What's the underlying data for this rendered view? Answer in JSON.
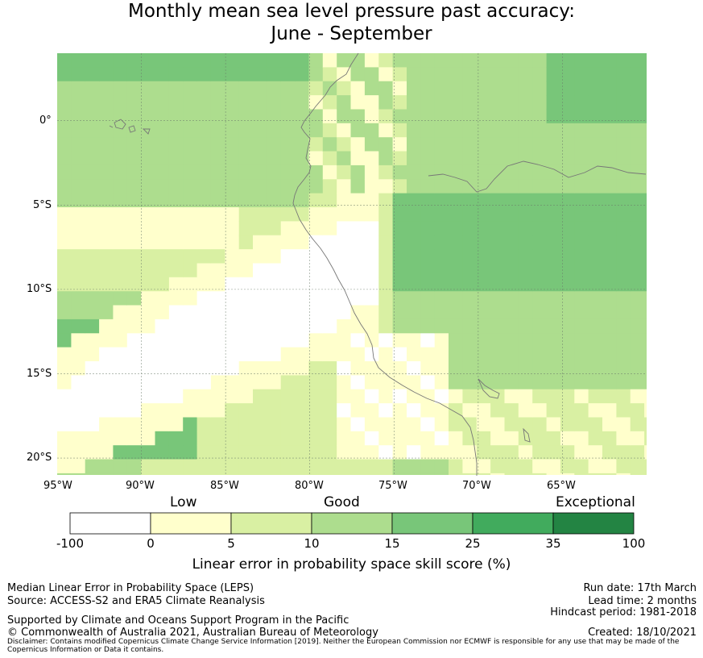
{
  "title": {
    "line1": "Monthly mean sea level pressure past accuracy:",
    "line2": "June - September"
  },
  "map": {
    "lat_labels": [
      "0°",
      "5°S",
      "10°S",
      "15°S",
      "20°S"
    ],
    "lon_labels": [
      "95°W",
      "90°W",
      "85°W",
      "80°W",
      "75°W",
      "70°W",
      "65°W"
    ],
    "lon_range": [
      -95,
      -60
    ],
    "lat_range": [
      -21,
      4
    ],
    "cell_size_deg": 0.83,
    "skill_palette": [
      "#ffffff",
      "#ffffcc",
      "#d9f0a3",
      "#addd8e",
      "#78c679",
      "#41ab5d",
      "#238443"
    ]
  },
  "legend": {
    "category_labels": {
      "low": "Low",
      "good": "Good",
      "exceptional": "Exceptional"
    },
    "boundaries": [
      "-100",
      "0",
      "5",
      "10",
      "15",
      "25",
      "35",
      "100"
    ],
    "colors": [
      "#ffffff",
      "#ffffcc",
      "#d9f0a3",
      "#addd8e",
      "#78c679",
      "#41ab5d",
      "#238443"
    ],
    "axis_title": "Linear error in probability space skill score (%)"
  },
  "footer": {
    "left_line1": "Median Linear Error in Probability Space (LEPS)",
    "left_line2": "Source: ACCESS-S2 and ERA5 Climate Reanalysis",
    "left_line3": "Supported by Climate and Oceans Support Program in the Pacific",
    "left_line4": "© Commonwealth of Australia 2021, Australian Bureau of Meteorology",
    "right_line1": "Run date: 17th March",
    "right_line2": "Lead time: 2 months",
    "right_line3": "Hindcast period: 1981-2018",
    "right_line4": "Created: 18/10/2021",
    "disclaimer_line1": "Disclaimer: Contains modified Copernicus Climate Change Service Information [2019]. Neither the European Commission nor ECMWF is responsible for any use that may be made of the",
    "disclaimer_line2": "Copernicus Information or Data it contains."
  }
}
